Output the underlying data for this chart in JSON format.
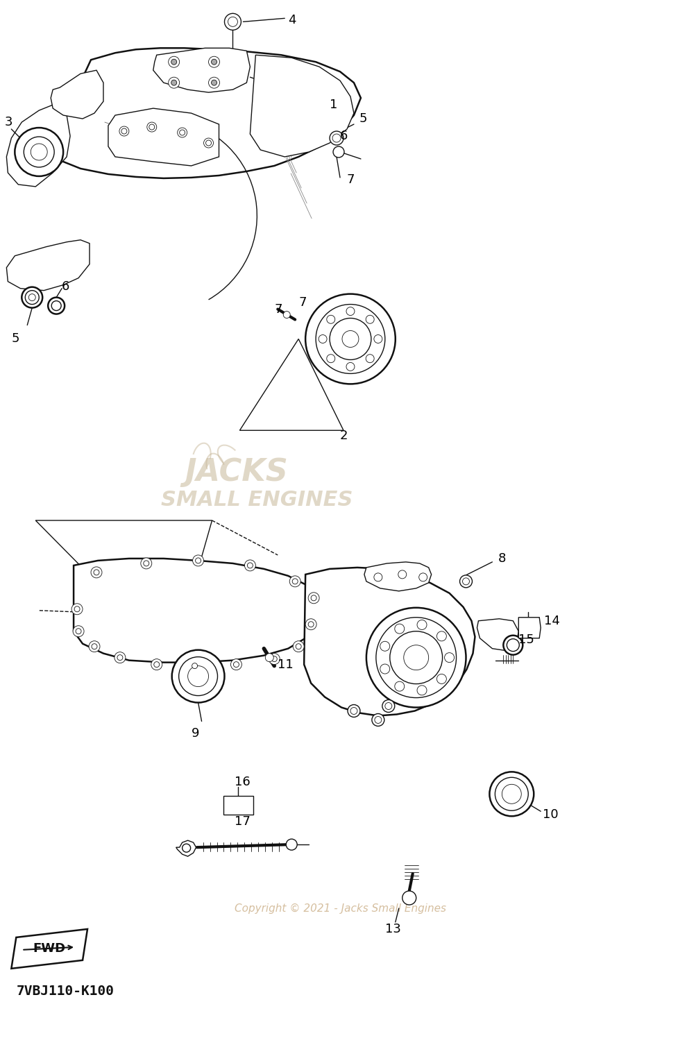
{
  "bg_color": "#ffffff",
  "fig_width": 9.9,
  "fig_height": 15.19,
  "dpi": 100,
  "watermark_line1": "JACKS",
  "watermark_line2": "SMALL ENGINES",
  "watermark_color": "#c8b89a",
  "copyright_text": "Copyright © 2021 - Jacks Small Engines",
  "copyright_color": "#c8aa80",
  "footer_code": "7VBJ110-K100",
  "fwd_label": "FWD",
  "line_color": "#111111",
  "lw_main": 1.8,
  "lw_thin": 1.0,
  "lw_hair": 0.6,
  "label_fs": 13
}
